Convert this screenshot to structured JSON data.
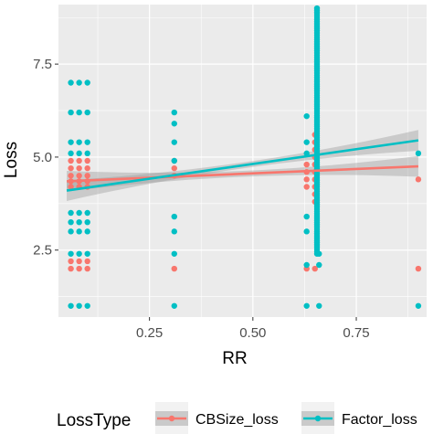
{
  "chart_data": {
    "type": "scatter",
    "title": "",
    "xlabel": "RR",
    "ylabel": "Loss",
    "xlim": [
      0.03,
      0.92
    ],
    "ylim": [
      0.7,
      9.1
    ],
    "x_ticks": [
      0.25,
      0.5,
      0.75
    ],
    "x_tick_labels": [
      "0.25",
      "0.50",
      "0.75"
    ],
    "y_ticks": [
      2.5,
      5.0,
      7.5
    ],
    "y_tick_labels": [
      "2.5",
      "5.0",
      "7.5"
    ],
    "grid": true,
    "legend_position": "bottom",
    "legend_title": "LossType",
    "colors": {
      "panel_bg": "#ebebeb",
      "grid": "#ffffff",
      "ribbon": "#999999"
    },
    "series": [
      {
        "name": "CBSize_loss",
        "color": "#f8766d",
        "points": [
          [
            0.06,
            2.0
          ],
          [
            0.06,
            2.2
          ],
          [
            0.06,
            4.2
          ],
          [
            0.06,
            4.35
          ],
          [
            0.06,
            4.5
          ],
          [
            0.06,
            4.7
          ],
          [
            0.06,
            4.9
          ],
          [
            0.08,
            2.0
          ],
          [
            0.08,
            2.2
          ],
          [
            0.08,
            4.2
          ],
          [
            0.08,
            4.35
          ],
          [
            0.08,
            4.5
          ],
          [
            0.08,
            4.7
          ],
          [
            0.08,
            4.9
          ],
          [
            0.1,
            2.0
          ],
          [
            0.1,
            2.2
          ],
          [
            0.1,
            4.2
          ],
          [
            0.1,
            4.35
          ],
          [
            0.1,
            4.5
          ],
          [
            0.1,
            4.7
          ],
          [
            0.1,
            4.9
          ],
          [
            0.31,
            2.0
          ],
          [
            0.31,
            4.5
          ],
          [
            0.31,
            4.7
          ],
          [
            0.31,
            4.9
          ],
          [
            0.63,
            2.0
          ],
          [
            0.63,
            4.2
          ],
          [
            0.63,
            4.4
          ],
          [
            0.63,
            4.6
          ],
          [
            0.63,
            4.8
          ],
          [
            0.65,
            2.0
          ],
          [
            0.65,
            3.8
          ],
          [
            0.65,
            4.0
          ],
          [
            0.65,
            4.2
          ],
          [
            0.65,
            4.4
          ],
          [
            0.65,
            4.6
          ],
          [
            0.65,
            4.8
          ],
          [
            0.65,
            5.0
          ],
          [
            0.65,
            5.2
          ],
          [
            0.65,
            5.4
          ],
          [
            0.65,
            5.6
          ],
          [
            0.9,
            2.0
          ],
          [
            0.9,
            4.4
          ]
        ],
        "trend": [
          [
            0.05,
            4.35
          ],
          [
            0.9,
            4.75
          ]
        ]
      },
      {
        "name": "Factor_loss",
        "color": "#00bfc4",
        "points": [
          [
            0.06,
            1.0
          ],
          [
            0.06,
            2.4
          ],
          [
            0.06,
            3.0
          ],
          [
            0.06,
            3.25
          ],
          [
            0.06,
            3.5
          ],
          [
            0.06,
            5.1
          ],
          [
            0.06,
            5.4
          ],
          [
            0.06,
            6.2
          ],
          [
            0.06,
            7.0
          ],
          [
            0.08,
            1.0
          ],
          [
            0.08,
            2.4
          ],
          [
            0.08,
            3.0
          ],
          [
            0.08,
            3.25
          ],
          [
            0.08,
            3.5
          ],
          [
            0.08,
            5.1
          ],
          [
            0.08,
            5.4
          ],
          [
            0.08,
            6.2
          ],
          [
            0.08,
            7.0
          ],
          [
            0.1,
            1.0
          ],
          [
            0.1,
            2.4
          ],
          [
            0.1,
            3.0
          ],
          [
            0.1,
            3.25
          ],
          [
            0.1,
            3.5
          ],
          [
            0.1,
            5.1
          ],
          [
            0.1,
            5.4
          ],
          [
            0.1,
            6.2
          ],
          [
            0.1,
            7.0
          ],
          [
            0.31,
            1.0
          ],
          [
            0.31,
            2.4
          ],
          [
            0.31,
            3.0
          ],
          [
            0.31,
            3.4
          ],
          [
            0.31,
            4.9
          ],
          [
            0.31,
            5.4
          ],
          [
            0.31,
            5.9
          ],
          [
            0.31,
            6.2
          ],
          [
            0.63,
            1.0
          ],
          [
            0.63,
            2.1
          ],
          [
            0.63,
            3.0
          ],
          [
            0.63,
            3.4
          ],
          [
            0.63,
            5.1
          ],
          [
            0.63,
            5.4
          ],
          [
            0.63,
            6.1
          ],
          [
            0.66,
            1.0
          ],
          [
            0.66,
            2.1
          ],
          [
            0.66,
            2.4
          ],
          [
            0.9,
            1.0
          ],
          [
            0.9,
            5.1
          ]
        ],
        "column": {
          "x": 0.655,
          "y_from": 2.4,
          "y_to": 9.0
        },
        "trend": [
          [
            0.05,
            4.1
          ],
          [
            0.9,
            5.45
          ]
        ]
      }
    ]
  }
}
